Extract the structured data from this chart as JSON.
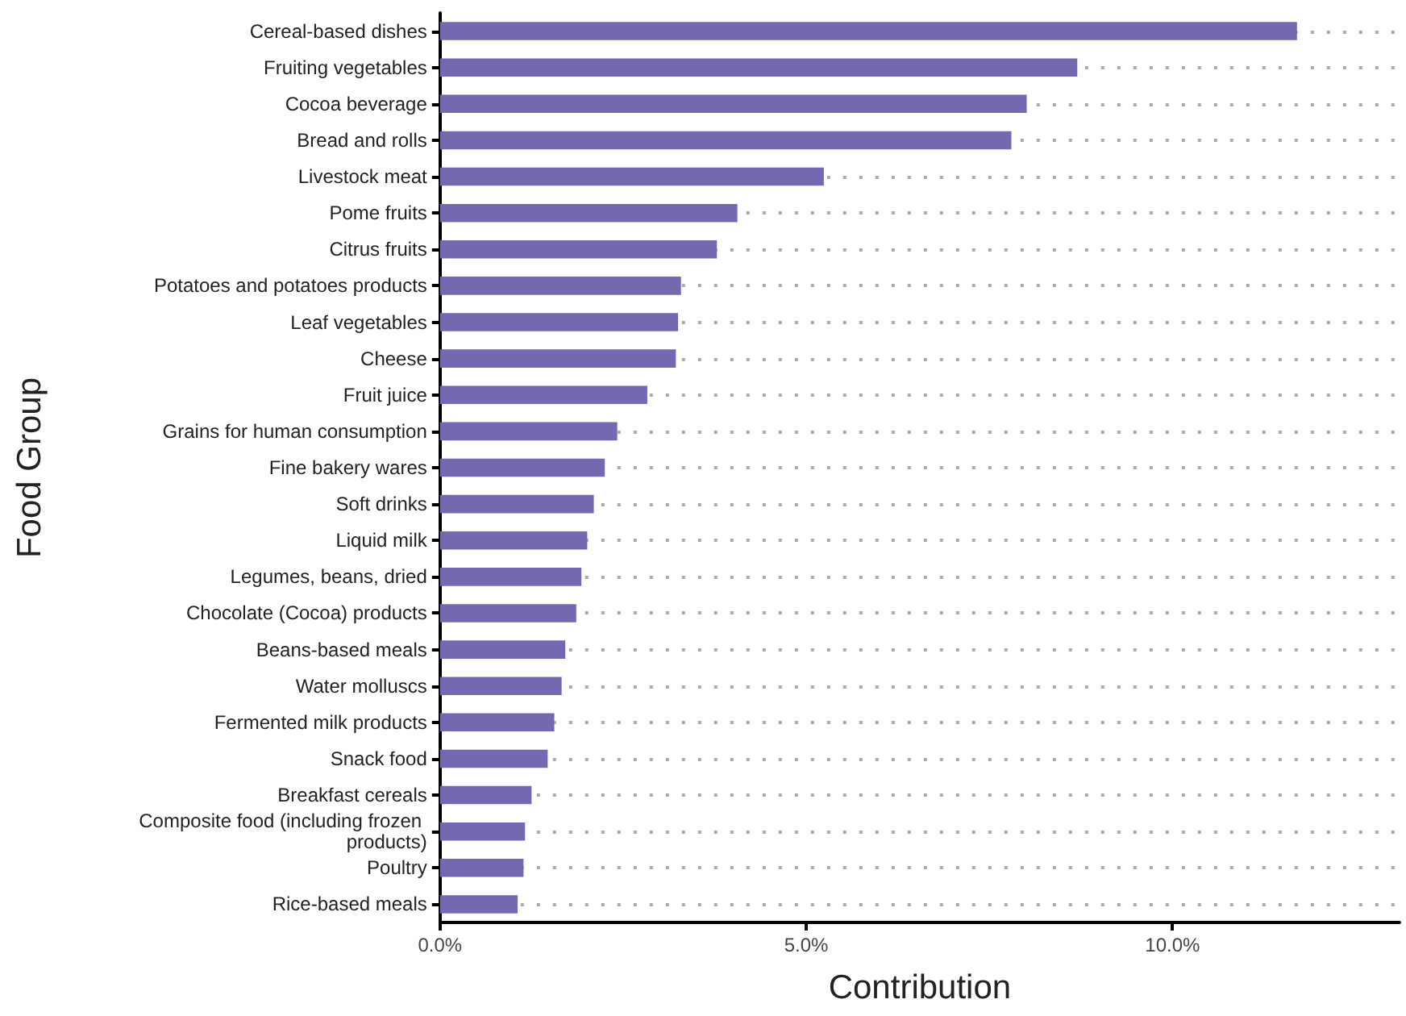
{
  "chart_data": {
    "type": "bar",
    "orientation": "horizontal",
    "xlabel": "Contribution",
    "ylabel": "Food Group",
    "categories": [
      "Cereal-based dishes",
      "Fruiting vegetables",
      "Cocoa beverage",
      "Bread and rolls",
      "Livestock meat",
      "Pome fruits",
      "Citrus fruits",
      "Potatoes and potatoes products",
      "Leaf vegetables",
      "Cheese",
      "Fruit juice",
      "Grains for human consumption",
      "Fine bakery wares",
      "Soft drinks",
      "Liquid milk",
      "Legumes, beans, dried",
      "Chocolate (Cocoa) products",
      "Beans-based meals",
      "Water molluscs",
      "Fermented milk products",
      "Snack food",
      "Breakfast cereals",
      "Composite food (including frozen products)",
      "Poultry",
      "Rice-based meals"
    ],
    "values": [
      11.7,
      8.7,
      8.01,
      7.8,
      5.24,
      4.06,
      3.78,
      3.29,
      3.25,
      3.22,
      2.83,
      2.42,
      2.25,
      2.1,
      2.01,
      1.93,
      1.86,
      1.71,
      1.66,
      1.56,
      1.47,
      1.25,
      1.16,
      1.14,
      1.06
    ],
    "color": "#7469b0",
    "xlim": [
      0,
      13.1
    ],
    "xticks": [
      {
        "value": 0,
        "label": "0.0%"
      },
      {
        "value": 5,
        "label": "5.0%"
      },
      {
        "value": 10,
        "label": "10.0%"
      }
    ],
    "grid": "y",
    "line_style": "dotted"
  }
}
